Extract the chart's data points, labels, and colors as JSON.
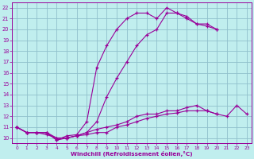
{
  "xlabel": "Windchill (Refroidissement éolien,°C)",
  "bg_color": "#c0eeee",
  "grid_color": "#90c0cc",
  "line_color": "#990099",
  "xlim": [
    -0.5,
    23.5
  ],
  "ylim": [
    9.5,
    22.5
  ],
  "xticks": [
    0,
    1,
    2,
    3,
    4,
    5,
    6,
    7,
    8,
    9,
    10,
    11,
    12,
    13,
    14,
    15,
    16,
    17,
    18,
    19,
    20,
    21,
    22,
    23
  ],
  "yticks": [
    10,
    11,
    12,
    13,
    14,
    15,
    16,
    17,
    18,
    19,
    20,
    21,
    22
  ],
  "lines": [
    {
      "comment": "top curve - steep rise",
      "x": [
        0,
        1,
        2,
        3,
        4,
        5,
        6,
        7,
        8,
        9,
        10,
        11,
        12,
        13,
        14,
        15,
        16,
        17,
        18,
        19,
        20
      ],
      "y": [
        11,
        10.5,
        10.5,
        10.5,
        9.8,
        10.2,
        10.3,
        11.5,
        16.5,
        18.5,
        20.0,
        21.0,
        21.5,
        21.5,
        21.0,
        22.0,
        21.5,
        21.2,
        20.5,
        20.3,
        20.0
      ]
    },
    {
      "comment": "second curve - gradual rise",
      "x": [
        0,
        1,
        2,
        3,
        4,
        5,
        6,
        7,
        8,
        9,
        10,
        11,
        12,
        13,
        14,
        15,
        16,
        17,
        18,
        19,
        20
      ],
      "y": [
        11,
        10.5,
        10.5,
        10.5,
        9.8,
        10.0,
        10.2,
        10.5,
        11.5,
        13.8,
        15.5,
        17.0,
        18.5,
        19.5,
        20.0,
        21.5,
        21.5,
        21.0,
        20.5,
        20.5,
        20.0
      ]
    },
    {
      "comment": "lower curve 1",
      "x": [
        0,
        1,
        2,
        3,
        4,
        5,
        6,
        7,
        8,
        9,
        10,
        11,
        12,
        13,
        14,
        15,
        16,
        17,
        18,
        19,
        20,
        21,
        22,
        23
      ],
      "y": [
        11,
        10.5,
        10.5,
        10.5,
        10.0,
        10.0,
        10.2,
        10.5,
        10.8,
        11.0,
        11.2,
        11.5,
        12.0,
        12.2,
        12.2,
        12.5,
        12.5,
        12.8,
        13.0,
        12.5,
        12.2,
        12.0,
        13.0,
        12.2
      ]
    },
    {
      "comment": "bottom curve",
      "x": [
        0,
        1,
        2,
        3,
        4,
        5,
        6,
        7,
        8,
        9,
        10,
        11,
        12,
        13,
        14,
        15,
        16,
        17,
        18,
        19,
        20
      ],
      "y": [
        11,
        10.5,
        10.5,
        10.3,
        10.0,
        10.0,
        10.2,
        10.3,
        10.5,
        10.5,
        11.0,
        11.2,
        11.5,
        11.8,
        12.0,
        12.2,
        12.3,
        12.5,
        12.5,
        12.5,
        12.2
      ]
    }
  ]
}
